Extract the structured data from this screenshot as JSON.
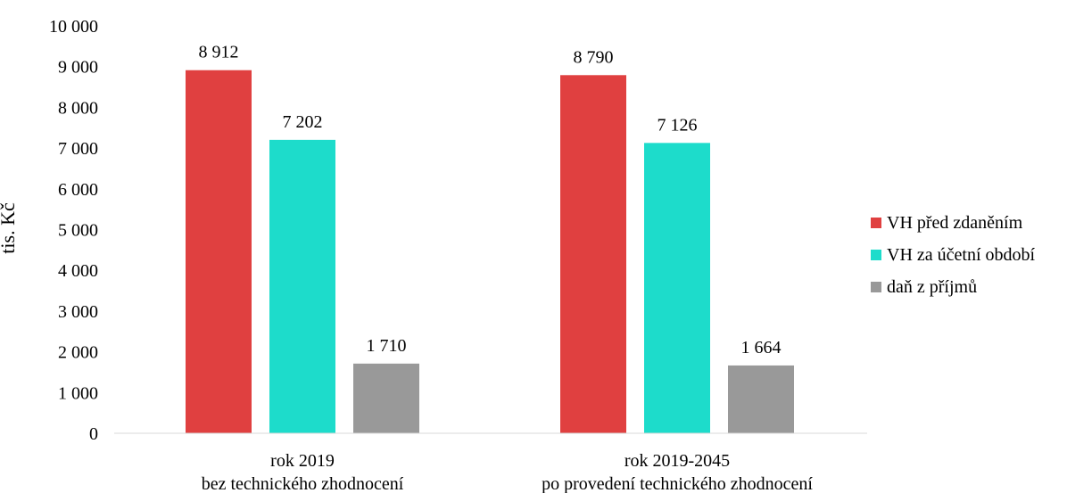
{
  "chart_data": {
    "type": "bar",
    "ylabel": "tis. Kč",
    "ylim": [
      0,
      10000
    ],
    "yticks": [
      "0",
      "1 000",
      "2 000",
      "3 000",
      "4 000",
      "5 000",
      "6 000",
      "7 000",
      "8 000",
      "9 000",
      "10 000"
    ],
    "categories": [
      [
        "rok 2019",
        "bez technického zhodnocení"
      ],
      [
        "rok 2019-2045",
        "po provedení technického zhodnocení"
      ]
    ],
    "series": [
      {
        "name": "VH před zdaněním",
        "color": "#e04040",
        "values": [
          8912,
          8790
        ],
        "labels": [
          "8 912",
          "8 790"
        ]
      },
      {
        "name": "VH za účetní období",
        "color": "#1ddccb",
        "values": [
          7202,
          7126
        ],
        "labels": [
          "7 202",
          "7 126"
        ]
      },
      {
        "name": "daň z příjmů",
        "color": "#999999",
        "values": [
          1710,
          1664
        ],
        "labels": [
          "1 710",
          "1 664"
        ]
      }
    ],
    "grid": false,
    "legend_position": "right"
  }
}
